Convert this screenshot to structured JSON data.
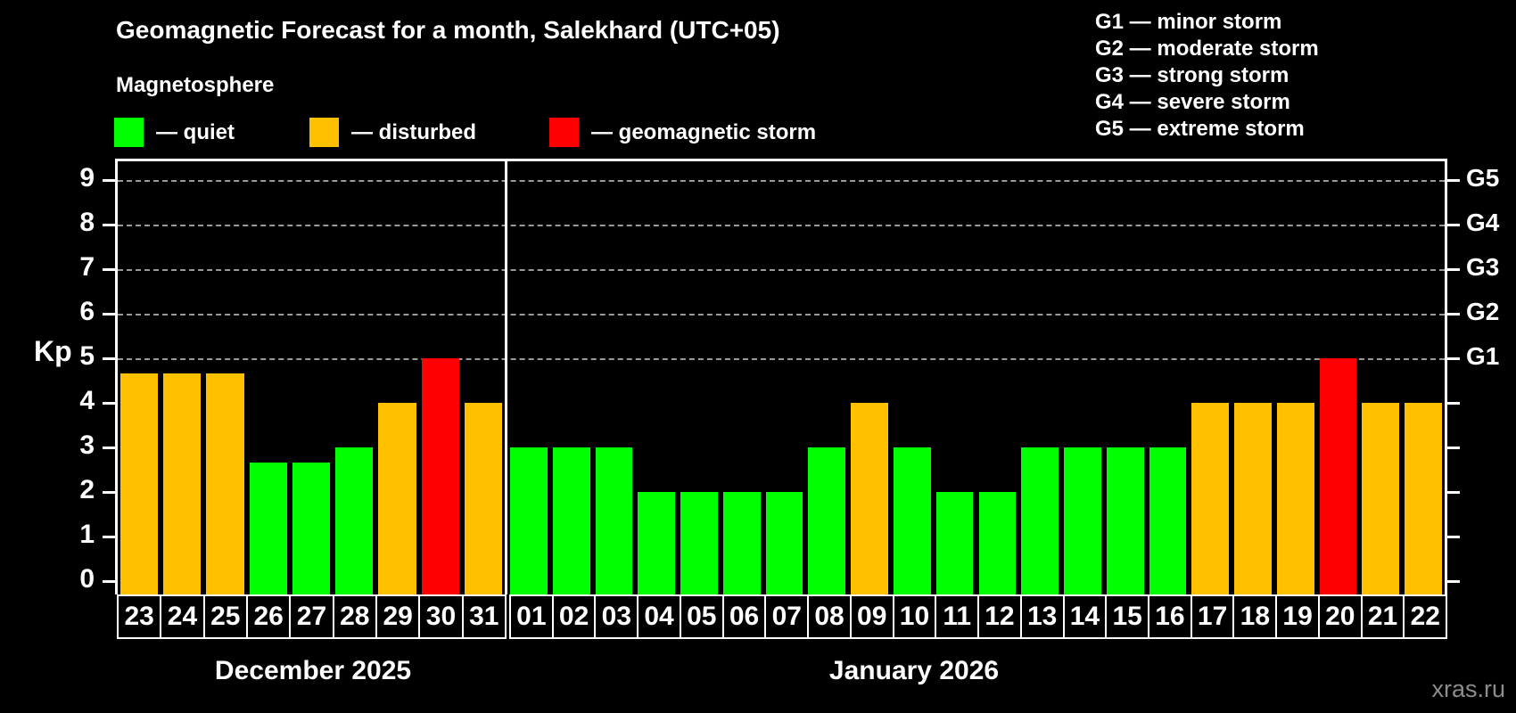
{
  "legend": {
    "title": "Magnetosphere",
    "items": [
      {
        "key": "quiet",
        "label": "— quiet"
      },
      {
        "key": "disturbed",
        "label": "— disturbed"
      },
      {
        "key": "storm",
        "label": "— geomagnetic storm"
      }
    ]
  },
  "g_legend": {
    "lines": [
      "G1 — minor storm",
      "G2 — moderate storm",
      "G3 — strong storm",
      "G4 — severe storm",
      "G5 — extreme storm"
    ]
  },
  "watermark": "xras.ru",
  "chart_data": {
    "type": "bar",
    "title": "Geomagnetic Forecast for a month, Salekhard (UTC+05)",
    "ylabel": "Kp",
    "ylim": [
      0,
      9.4
    ],
    "yticks": [
      0,
      1,
      2,
      3,
      4,
      5,
      6,
      7,
      8,
      9
    ],
    "grid_levels": [
      5,
      6,
      7,
      8,
      9
    ],
    "grid_on": true,
    "legend_position": "top-left",
    "right_axis": [
      {
        "kp": 5,
        "label": "G1"
      },
      {
        "kp": 6,
        "label": "G2"
      },
      {
        "kp": 7,
        "label": "G3"
      },
      {
        "kp": 8,
        "label": "G4"
      },
      {
        "kp": 9,
        "label": "G5"
      }
    ],
    "colors": {
      "quiet": "#00ff00",
      "disturbed": "#ffc000",
      "storm": "#ff0000",
      "grid": "#9a9a9a",
      "axis": "#ffffff",
      "background": "#000000"
    },
    "groups": [
      {
        "label": "December 2025",
        "days": [
          "23",
          "24",
          "25",
          "26",
          "27",
          "28",
          "29",
          "30",
          "31"
        ],
        "values": [
          4.67,
          4.67,
          4.67,
          2.67,
          2.67,
          3,
          4,
          5,
          4
        ],
        "levels": [
          "disturbed",
          "disturbed",
          "disturbed",
          "quiet",
          "quiet",
          "quiet",
          "disturbed",
          "storm",
          "disturbed"
        ]
      },
      {
        "label": "January 2026",
        "days": [
          "01",
          "02",
          "03",
          "04",
          "05",
          "06",
          "07",
          "08",
          "09",
          "10",
          "11",
          "12",
          "13",
          "14",
          "15",
          "16",
          "17",
          "18",
          "19",
          "20",
          "21",
          "22"
        ],
        "values": [
          3,
          3,
          3,
          2,
          2,
          2,
          2,
          3,
          4,
          3,
          2,
          2,
          3,
          3,
          3,
          3,
          4,
          4,
          4,
          5,
          4,
          4
        ],
        "levels": [
          "quiet",
          "quiet",
          "quiet",
          "quiet",
          "quiet",
          "quiet",
          "quiet",
          "quiet",
          "disturbed",
          "quiet",
          "quiet",
          "quiet",
          "quiet",
          "quiet",
          "quiet",
          "quiet",
          "disturbed",
          "disturbed",
          "disturbed",
          "storm",
          "disturbed",
          "disturbed"
        ]
      }
    ]
  }
}
